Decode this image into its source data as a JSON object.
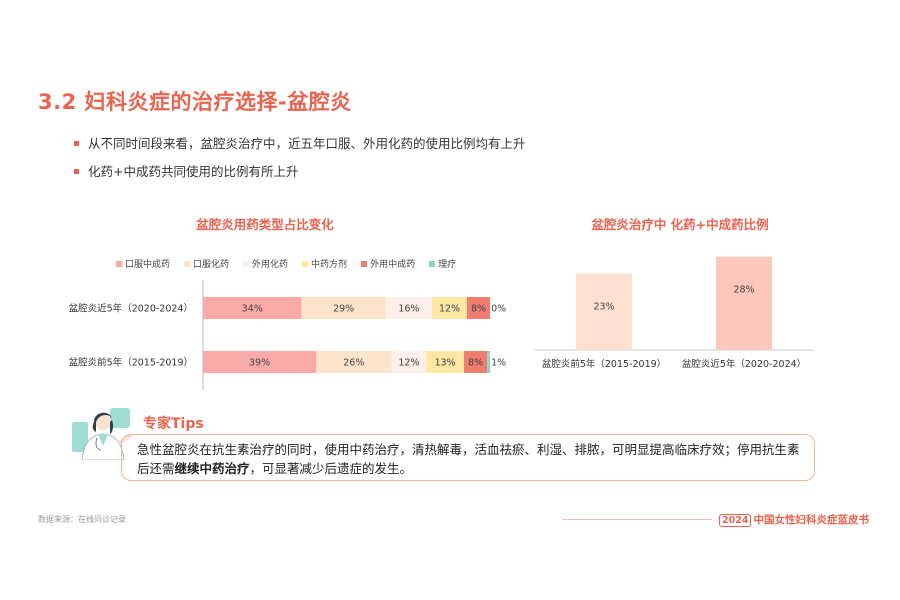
{
  "header": {
    "title": "3.2 妇科炎症的治疗选择-盆腔炎"
  },
  "bullets": [
    "从不同时间段来看，盆腔炎治疗中，近五年口服、外用化药的使用比例均有上升",
    "化药+中成药共同使用的比例有所上升"
  ],
  "chart_data": [
    {
      "type": "bar",
      "orientation": "horizontal-stacked-100",
      "title": "盆腔炎用药类型占比变化",
      "legend_position": "top",
      "categories": [
        "盆腔炎近5年（2020-2024）",
        "盆腔炎前5年（2015-2019）"
      ],
      "series": [
        {
          "name": "口服中成药",
          "color": "#f9a9a8",
          "values": [
            34,
            39
          ],
          "labels": [
            "34%",
            "39%"
          ]
        },
        {
          "name": "口服化药",
          "color": "#fce3cc",
          "values": [
            29,
            26
          ],
          "labels": [
            "29%",
            "26%"
          ]
        },
        {
          "name": "外用化药",
          "color": "#fdf0ea",
          "values": [
            16,
            12
          ],
          "labels": [
            "16%",
            "12%"
          ]
        },
        {
          "name": "中药方剂",
          "color": "#fde7a3",
          "values": [
            12,
            13
          ],
          "labels": [
            "12%",
            "13%"
          ]
        },
        {
          "name": "外用中成药",
          "color": "#ef7d70",
          "values": [
            8,
            8
          ],
          "labels": [
            "8%",
            "8%"
          ]
        },
        {
          "name": "理疗",
          "color": "#8fd1cc",
          "values": [
            0,
            1
          ],
          "labels": [
            "0%",
            "1%"
          ]
        }
      ],
      "xlim": [
        0,
        100
      ]
    },
    {
      "type": "bar",
      "title": "盆腔炎治疗中 化药+中成药比例",
      "categories": [
        "盆腔炎前5年（2015-2019）",
        "盆腔炎近5年（2020-2024）"
      ],
      "values": [
        23,
        28
      ],
      "labels": [
        "23%",
        "28%"
      ],
      "colors": [
        "#fde0d0",
        "#fdc7bb"
      ],
      "ylim": [
        0,
        30
      ]
    }
  ],
  "tips": {
    "title": "专家Tips",
    "text_before": "急性盆腔炎在抗生素治疗的同时，使用中药治疗，清热解毒，活血祛瘀、利湿、排脓，可明显提高临床疗效；停用抗生素后还需",
    "text_bold": "继续中药治疗",
    "text_after": "，可显著减少后遗症的发生。"
  },
  "footer": {
    "source": "数据来源：在线问诊记录",
    "year": "2024",
    "brand": "中国女性妇科炎症蓝皮书"
  },
  "colors": {
    "accent": "#e8644f",
    "tips_border": "#f4b59c"
  }
}
